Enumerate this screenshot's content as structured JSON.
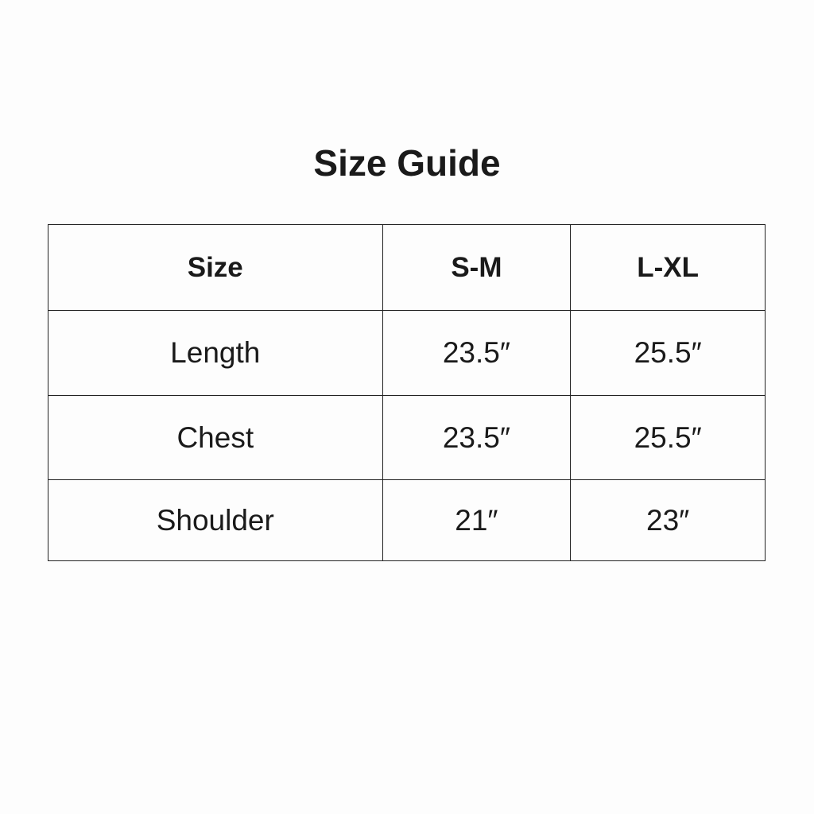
{
  "title": "Size Guide",
  "table": {
    "headers": [
      "Size",
      "S-M",
      "L-XL"
    ],
    "rows": [
      [
        "Length",
        "23.5″",
        "25.5″"
      ],
      [
        "Chest",
        "23.5″",
        "25.5″"
      ],
      [
        "Shoulder",
        "21″",
        "23″"
      ]
    ]
  }
}
